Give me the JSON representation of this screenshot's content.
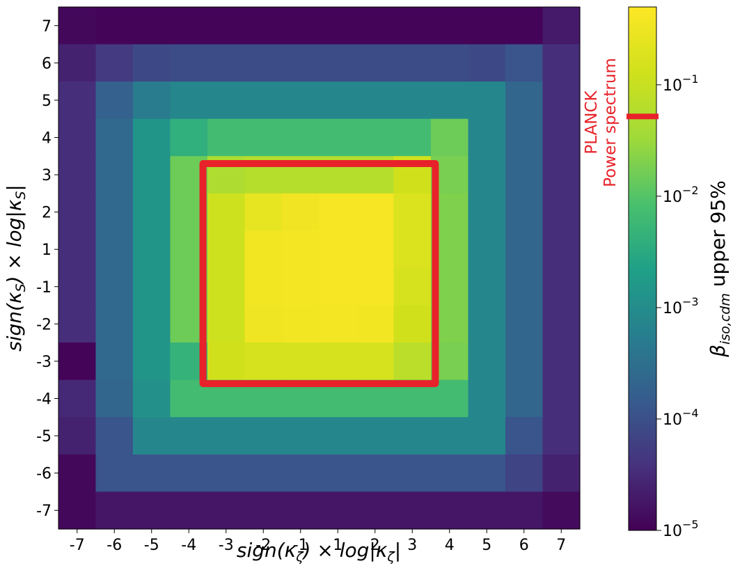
{
  "chart_data": {
    "type": "heatmap",
    "xlabel": "sign(κζ) × log|κζ|",
    "ylabel": "sign(κS) × log|κS|",
    "x_ticks": [
      "-7",
      "-6",
      "-5",
      "-4",
      "-3",
      "-2",
      "-1",
      "1",
      "2",
      "3",
      "4",
      "5",
      "6",
      "7"
    ],
    "y_ticks": [
      "7",
      "6",
      "5",
      "4",
      "3",
      "2",
      "1",
      "-1",
      "-2",
      "-3",
      "-4",
      "-5",
      "-6",
      "-7"
    ],
    "colorbar": {
      "label": "βiso,cdm upper 95%",
      "scale": "log",
      "range": [
        1e-05,
        0.5
      ],
      "ticks": [
        "10^-1",
        "10^-2",
        "10^-3",
        "10^-4",
        "10^-5"
      ],
      "tick_values": [
        0.1,
        0.01,
        0.001,
        0.0001,
        1e-05
      ],
      "colormap": "viridis",
      "marker": {
        "value": 0.052,
        "color": "#e8222a"
      }
    },
    "values": [
      [
        1.2e-05,
        1.1e-05,
        1.1e-05,
        1.1e-05,
        1.1e-05,
        1.1e-05,
        1.1e-05,
        1.1e-05,
        1.1e-05,
        1.1e-05,
        1.1e-05,
        1.1e-05,
        1.1e-05,
        2e-05
      ],
      [
        2.5e-05,
        5e-05,
        8e-05,
        9e-05,
        9e-05,
        9e-05,
        9e-05,
        9e-05,
        9e-05,
        9e-05,
        9e-05,
        8e-05,
        0.00012,
        3.5e-05
      ],
      [
        3.5e-05,
        0.00018,
        0.0005,
        0.0008,
        0.0008,
        0.0008,
        0.0008,
        0.0008,
        0.0008,
        0.0008,
        0.0008,
        0.0008,
        0.00022,
        3.5e-05
      ],
      [
        3.5e-05,
        0.00025,
        0.0014,
        0.004,
        0.007,
        0.007,
        0.007,
        0.007,
        0.007,
        0.007,
        0.015,
        0.0008,
        0.00022,
        3.5e-05
      ],
      [
        3.5e-05,
        0.00025,
        0.0014,
        0.015,
        0.05,
        0.06,
        0.06,
        0.06,
        0.06,
        0.13,
        0.018,
        0.0008,
        0.00022,
        3.5e-05
      ],
      [
        3.5e-05,
        0.00025,
        0.0014,
        0.015,
        0.12,
        0.26,
        0.35,
        0.4,
        0.4,
        0.18,
        0.02,
        0.0008,
        0.00022,
        3.5e-05
      ],
      [
        3.5e-05,
        0.00025,
        0.0014,
        0.015,
        0.12,
        0.36,
        0.39,
        0.4,
        0.4,
        0.18,
        0.02,
        0.0008,
        0.00022,
        3.5e-05
      ],
      [
        3.5e-05,
        0.00025,
        0.0014,
        0.015,
        0.12,
        0.36,
        0.39,
        0.4,
        0.4,
        0.15,
        0.02,
        0.0008,
        0.00022,
        3.5e-05
      ],
      [
        3.5e-05,
        0.00025,
        0.0014,
        0.015,
        0.12,
        0.34,
        0.36,
        0.38,
        0.36,
        0.13,
        0.02,
        0.0008,
        0.00022,
        3.5e-05
      ],
      [
        1.1e-05,
        0.00025,
        0.0014,
        0.0045,
        0.13,
        0.15,
        0.15,
        0.15,
        0.15,
        0.07,
        0.018,
        0.0008,
        0.00022,
        3.5e-05
      ],
      [
        3e-05,
        0.00022,
        0.0012,
        0.007,
        0.007,
        0.007,
        0.007,
        0.007,
        0.007,
        0.007,
        0.007,
        0.0008,
        0.00022,
        3.5e-05
      ],
      [
        2.5e-05,
        0.00012,
        0.0008,
        0.0008,
        0.0008,
        0.0008,
        0.0008,
        0.0008,
        0.0008,
        0.0008,
        0.0008,
        0.0008,
        0.00012,
        3.5e-05
      ],
      [
        1.2e-05,
        0.00012,
        0.00012,
        0.00012,
        0.00012,
        0.00012,
        0.00012,
        0.00012,
        0.00012,
        0.00012,
        0.00012,
        0.00012,
        7e-05,
        2.5e-05
      ],
      [
        1.2e-05,
        1.8e-05,
        1.8e-05,
        1.8e-05,
        1.8e-05,
        1.8e-05,
        1.8e-05,
        1.8e-05,
        1.8e-05,
        1.8e-05,
        1.8e-05,
        1.8e-05,
        1.8e-05,
        1.3e-05
      ]
    ],
    "highlight_box": {
      "x_range": [
        "-3",
        "3"
      ],
      "y_range": [
        "3",
        "-3"
      ],
      "color": "#e8222a"
    },
    "annotation": [
      "PLANCK",
      "Power spectrum"
    ]
  }
}
